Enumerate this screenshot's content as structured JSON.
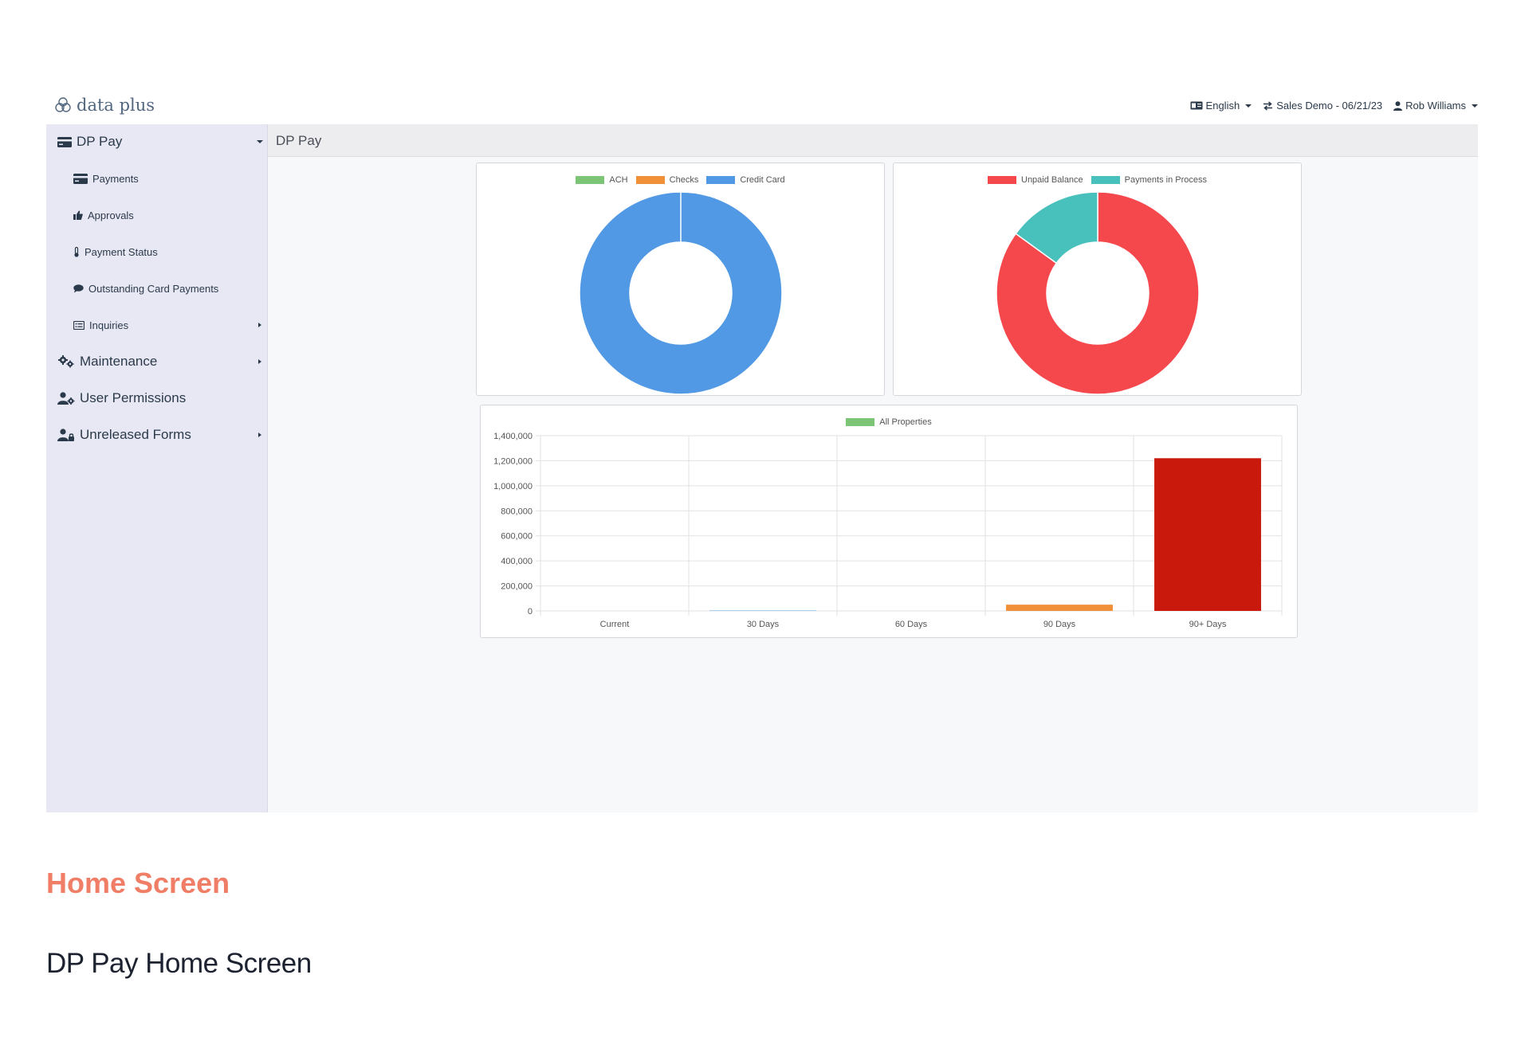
{
  "header": {
    "logo_text": "data plus",
    "language": "English",
    "company": "Sales Demo - 06/21/23",
    "user": "Rob Williams"
  },
  "sidebar": {
    "items": [
      {
        "label": "DP Pay",
        "icon": "credit-card-icon",
        "level": "main",
        "arrow": "down"
      },
      {
        "label": "Payments",
        "icon": "credit-card-icon",
        "level": "sub"
      },
      {
        "label": "Approvals",
        "icon": "thumbs-up-icon",
        "level": "sub"
      },
      {
        "label": "Payment Status",
        "icon": "thermometer-icon",
        "level": "sub"
      },
      {
        "label": "Outstanding Card Payments",
        "icon": "comment-icon",
        "level": "sub"
      },
      {
        "label": "Inquiries",
        "icon": "list-icon",
        "level": "sub",
        "arrow": "right"
      },
      {
        "label": "Maintenance",
        "icon": "cogs-icon",
        "level": "main",
        "arrow": "right"
      },
      {
        "label": "User Permissions",
        "icon": "user-gear-icon",
        "level": "main"
      },
      {
        "label": "Unreleased Forms",
        "icon": "user-lock-icon",
        "level": "main",
        "arrow": "right"
      }
    ]
  },
  "content": {
    "title": "DP Pay"
  },
  "chart_data": [
    {
      "type": "pie",
      "style": "doughnut",
      "legend_position": "top",
      "labels": [
        "ACH",
        "Checks",
        "Credit Card"
      ],
      "colors": [
        "#7cc576",
        "#f0913a",
        "#5199e4"
      ],
      "values": [
        0,
        0,
        100
      ]
    },
    {
      "type": "pie",
      "style": "doughnut",
      "legend_position": "top",
      "labels": [
        "Unpaid Balance",
        "Payments in Process"
      ],
      "colors": [
        "#f5484d",
        "#48c0bc"
      ],
      "values": [
        85,
        15
      ]
    },
    {
      "type": "bar",
      "legend_position": "top",
      "series": [
        {
          "name": "All Properties",
          "values": [
            0,
            6000,
            0,
            50000,
            1220000
          ]
        }
      ],
      "categories": [
        "Current",
        "30 Days",
        "60 Days",
        "90 Days",
        "90+ Days"
      ],
      "bar_colors": [
        "#5199e4",
        "#aad2ee",
        "#7cc576",
        "#f0913a",
        "#c8190c"
      ],
      "legend_color": "#7cc576",
      "yticks": [
        "1,400,000",
        "1,200,000",
        "1,000,000",
        "800,000",
        "600,000",
        "400,000",
        "200,000",
        "0"
      ],
      "ylim": [
        0,
        1400000
      ],
      "grid": true
    }
  ],
  "caption": {
    "title": "Home Screen",
    "subtitle": "DP Pay Home Screen"
  }
}
